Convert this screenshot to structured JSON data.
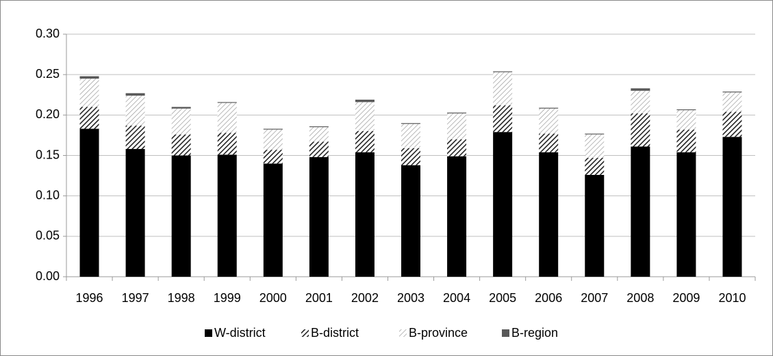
{
  "chart_data": {
    "type": "stacked-bar",
    "categories": [
      "1996",
      "1997",
      "1998",
      "1999",
      "2000",
      "2001",
      "2002",
      "2003",
      "2004",
      "2005",
      "2006",
      "2007",
      "2008",
      "2009",
      "2010"
    ],
    "series": [
      {
        "name": "W-district",
        "color": "#000000",
        "fill": "solid",
        "values": [
          0.183,
          0.158,
          0.15,
          0.151,
          0.14,
          0.148,
          0.154,
          0.138,
          0.149,
          0.179,
          0.154,
          0.126,
          0.161,
          0.154,
          0.173
        ]
      },
      {
        "name": "B-district",
        "color": "#222222",
        "fill": "hatch",
        "values": [
          0.027,
          0.029,
          0.026,
          0.027,
          0.017,
          0.019,
          0.026,
          0.021,
          0.021,
          0.033,
          0.023,
          0.021,
          0.041,
          0.028,
          0.031
        ]
      },
      {
        "name": "B-province",
        "color": "#9a9a9a",
        "fill": "hatch",
        "values": [
          0.035,
          0.037,
          0.032,
          0.037,
          0.025,
          0.018,
          0.036,
          0.03,
          0.032,
          0.041,
          0.031,
          0.029,
          0.028,
          0.024,
          0.024
        ]
      },
      {
        "name": "B-region",
        "color": "#595959",
        "fill": "solid",
        "values": [
          0.003,
          0.003,
          0.002,
          0.001,
          0.001,
          0.001,
          0.003,
          0.001,
          0.001,
          0.001,
          0.001,
          0.001,
          0.003,
          0.001,
          0.001
        ]
      }
    ],
    "ylim": [
      0,
      0.3
    ],
    "yticks": [
      {
        "value": 0,
        "label": "0.00"
      },
      0.05,
      {
        "value": 0.1,
        "label": "0.10"
      },
      0.15,
      {
        "value": 0.2,
        "label": "0.20"
      },
      0.25,
      {
        "value": 0.3,
        "label": "0.30"
      }
    ],
    "grid": true,
    "legend": "bottom"
  }
}
